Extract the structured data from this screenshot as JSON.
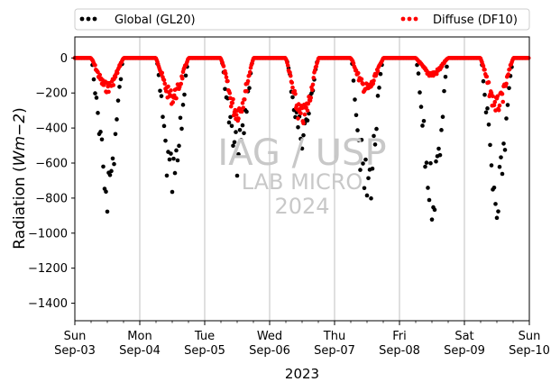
{
  "chart_data": {
    "type": "scatter",
    "title": "",
    "xlabel": "2023",
    "ylabel": "Radiation (Wm−2)",
    "ylabel_parts": {
      "prefix": "Radiation (",
      "unit": "Wm−2",
      "suffix": ")"
    },
    "x_unit": "days since Sun Sep-03 2023 00:00",
    "xlim": [
      0,
      7
    ],
    "ylim": [
      -1500,
      120
    ],
    "yticks": [
      0,
      -200,
      -400,
      -600,
      -800,
      -1000,
      -1200,
      -1400
    ],
    "ytick_labels": [
      "0",
      "−200",
      "−400",
      "−600",
      "−800",
      "−1000",
      "−1200",
      "−1400"
    ],
    "xticks": [
      {
        "day": 0,
        "weekday": "Sun",
        "date": "Sep-03"
      },
      {
        "day": 1,
        "weekday": "Mon",
        "date": "Sep-04"
      },
      {
        "day": 2,
        "weekday": "Tue",
        "date": "Sep-05"
      },
      {
        "day": 3,
        "weekday": "Wed",
        "date": "Sep-06"
      },
      {
        "day": 4,
        "weekday": "Thu",
        "date": "Sep-07"
      },
      {
        "day": 5,
        "weekday": "Fri",
        "date": "Sep-08"
      },
      {
        "day": 6,
        "weekday": "Sat",
        "date": "Sep-09"
      },
      {
        "day": 7,
        "weekday": "Sun",
        "date": "Sep-10"
      }
    ],
    "grid": "x-major-only",
    "legend_placement": "above-plot",
    "watermark": [
      "IAG / USP",
      "LAB MICRO",
      "2024"
    ],
    "series": [
      {
        "name": "Global (GL20)",
        "color": "#000000",
        "peaks": [
          -850,
          -850,
          -650,
          -500,
          -870,
          -890,
          -880
        ]
      },
      {
        "name": "Diffuse (DF10)",
        "color": "#ff0000",
        "peaks": [
          -180,
          -240,
          -330,
          -360,
          -190,
          -100,
          -290
        ]
      }
    ]
  }
}
